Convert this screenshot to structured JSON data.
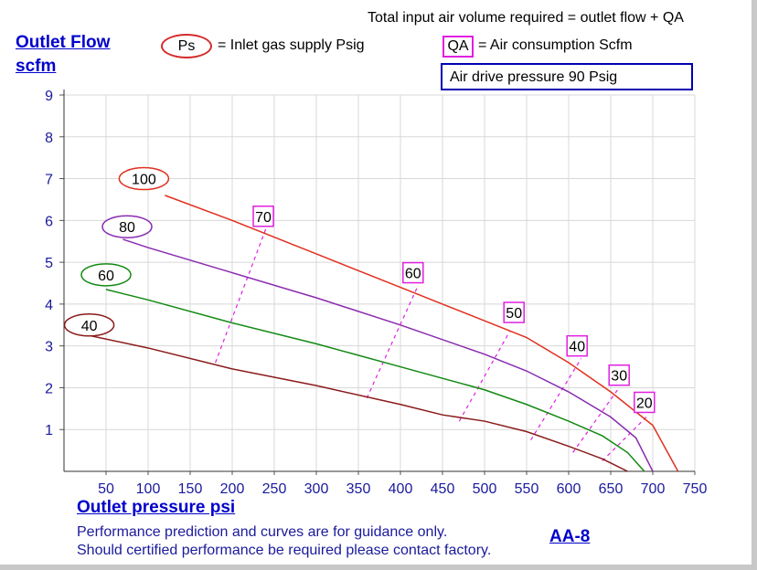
{
  "header": {
    "total_input": "Total input air volume required = outlet flow + QA",
    "ps_symbol": "Ps",
    "ps_desc": "= Inlet gas supply  Psig",
    "qa_symbol": "QA",
    "qa_desc": "= Air consumption  Scfm",
    "drive_pressure": "Air drive pressure  90 Psig"
  },
  "footer": {
    "note_line1": "Performance prediction and curves are for guidance only.",
    "note_line2": "Should certified performance be required please contact factory.",
    "model": "AA-8"
  },
  "chart_data": {
    "type": "line",
    "ylabel_line1": "Outlet Flow",
    "ylabel_line2": "scfm",
    "xlabel": "Outlet pressure   psi",
    "xlim": [
      0,
      750
    ],
    "ylim": [
      0,
      9
    ],
    "xticks": [
      "50",
      "100",
      "150",
      "200",
      "250",
      "300",
      "350",
      "400",
      "450",
      "500",
      "550",
      "600",
      "650",
      "700",
      "750"
    ],
    "yticks": [
      "1",
      "2",
      "3",
      "4",
      "5",
      "6",
      "7",
      "8",
      "9"
    ],
    "grid": true,
    "series": [
      {
        "name": "100",
        "color": "#e0301e",
        "label_at": [
          95,
          7.0
        ],
        "x": [
          120,
          200,
          300,
          400,
          450,
          500,
          550,
          600,
          650,
          700,
          730
        ],
        "y": [
          6.6,
          6.0,
          5.2,
          4.4,
          4.0,
          3.6,
          3.2,
          2.6,
          1.9,
          1.1,
          0.0
        ]
      },
      {
        "name": "80",
        "color": "#8a2bb0",
        "label_at": [
          75,
          5.85
        ],
        "x": [
          70,
          100,
          200,
          300,
          400,
          500,
          550,
          600,
          650,
          680,
          700
        ],
        "y": [
          5.55,
          5.35,
          4.75,
          4.15,
          3.5,
          2.8,
          2.4,
          1.9,
          1.3,
          0.8,
          0.0
        ]
      },
      {
        "name": "60",
        "color": "#138a13",
        "label_at": [
          50,
          4.7
        ],
        "x": [
          50,
          100,
          200,
          300,
          400,
          500,
          550,
          600,
          640,
          670,
          690
        ],
        "y": [
          4.35,
          4.1,
          3.55,
          3.05,
          2.5,
          1.95,
          1.6,
          1.2,
          0.85,
          0.45,
          0.0
        ]
      },
      {
        "name": "40",
        "color": "#8b1a1a",
        "label_at": [
          30,
          3.5
        ],
        "x": [
          30,
          100,
          200,
          300,
          400,
          450,
          500,
          550,
          600,
          640,
          670
        ],
        "y": [
          3.25,
          2.95,
          2.45,
          2.05,
          1.6,
          1.35,
          1.2,
          0.95,
          0.6,
          0.3,
          0.0
        ]
      }
    ],
    "qa_lines": [
      {
        "label": "70",
        "label_at": [
          237,
          6.1
        ],
        "x": [
          180,
          240
        ],
        "y": [
          2.6,
          5.8
        ]
      },
      {
        "label": "60",
        "label_at": [
          415,
          4.75
        ],
        "x": [
          360,
          420
        ],
        "y": [
          1.75,
          4.4
        ]
      },
      {
        "label": "50",
        "label_at": [
          535,
          3.8
        ],
        "x": [
          470,
          530
        ],
        "y": [
          1.2,
          3.35
        ]
      },
      {
        "label": "40",
        "label_at": [
          610,
          3.0
        ],
        "x": [
          555,
          615
        ],
        "y": [
          0.75,
          2.7
        ]
      },
      {
        "label": "30",
        "label_at": [
          660,
          2.3
        ],
        "x": [
          605,
          660
        ],
        "y": [
          0.45,
          2.0
        ]
      },
      {
        "label": "20",
        "label_at": [
          690,
          1.65
        ],
        "x": [
          640,
          695
        ],
        "y": [
          0.25,
          1.35
        ]
      }
    ]
  }
}
